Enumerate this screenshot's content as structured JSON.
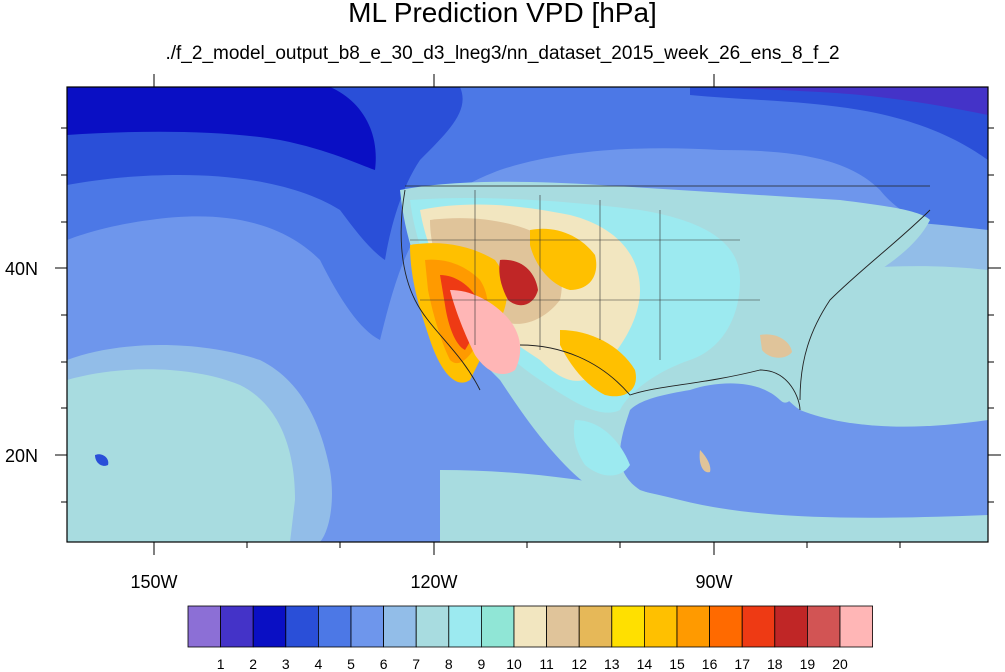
{
  "title": "ML Prediction VPD [hPa]",
  "subtitle": "./f_2_model_output_b8_e_30_d3_lneg3/nn_dataset_2015_week_26_ens_8_f_2",
  "lon_labels": [
    "150W",
    "120W",
    "90W"
  ],
  "lat_labels": [
    "40N",
    "20N"
  ],
  "colorbar": {
    "colors": [
      "#8c6fd6",
      "#4433c8",
      "#0a0fc4",
      "#2a4fd8",
      "#4c78e6",
      "#6e96ec",
      "#92bde8",
      "#a8dce0",
      "#9ceaf0",
      "#90e6d6",
      "#f2e6c0",
      "#e0c49a",
      "#e6b858",
      "#ffe000",
      "#ffc000",
      "#ff9a00",
      "#ff6a00",
      "#ee3a14",
      "#c02626",
      "#d25454",
      "#ffb6b6"
    ],
    "labels": [
      "1",
      "2",
      "3",
      "4",
      "5",
      "6",
      "7",
      "8",
      "9",
      "10",
      "11",
      "12",
      "13",
      "14",
      "15",
      "16",
      "17",
      "18",
      "19",
      "20"
    ]
  }
}
